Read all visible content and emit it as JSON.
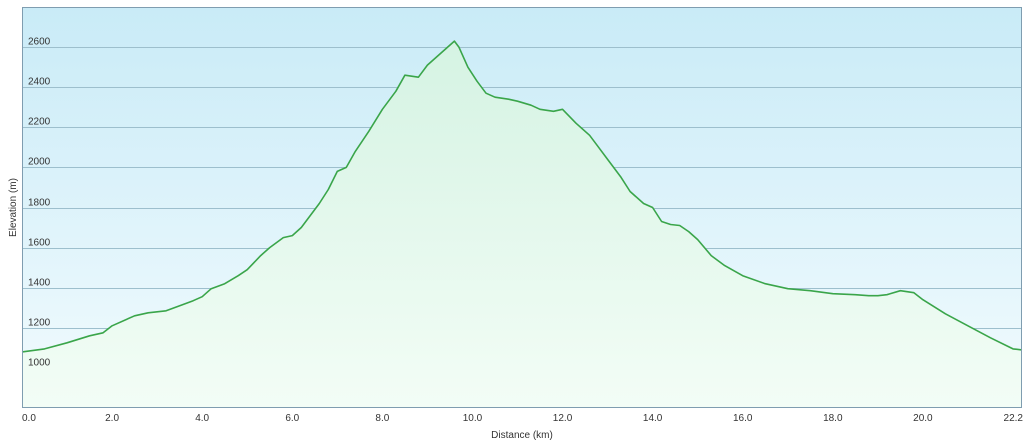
{
  "colors": {
    "background_top": "#c9ebf7",
    "background_bottom": "#f2fbfe",
    "fill_top": "#d5f3e3",
    "fill_bottom": "#f3fdf6",
    "line": "#3aa54a",
    "gridline": "#9dbfcd",
    "border": "#7f9db0"
  },
  "chart_data": {
    "type": "area",
    "xlabel": "Distance  (km)",
    "ylabel": "Elevation (m)",
    "xlim": [
      0,
      22.2
    ],
    "ylim": [
      800,
      2800
    ],
    "xticks": [
      {
        "value": 0,
        "label": "0.0"
      },
      {
        "value": 2,
        "label": "2.0"
      },
      {
        "value": 4,
        "label": "4.0"
      },
      {
        "value": 6,
        "label": "6.0"
      },
      {
        "value": 8,
        "label": "8.0"
      },
      {
        "value": 10,
        "label": "10.0"
      },
      {
        "value": 12,
        "label": "12.0"
      },
      {
        "value": 14,
        "label": "14.0"
      },
      {
        "value": 16,
        "label": "16.0"
      },
      {
        "value": 18,
        "label": "18.0"
      },
      {
        "value": 20,
        "label": "20.0"
      },
      {
        "value": 22.2,
        "label": "22.2"
      }
    ],
    "yticks": [
      {
        "value": 1000,
        "label": "1000"
      },
      {
        "value": 1200,
        "label": "1200"
      },
      {
        "value": 1400,
        "label": "1400"
      },
      {
        "value": 1600,
        "label": "1600"
      },
      {
        "value": 1800,
        "label": "1800"
      },
      {
        "value": 2000,
        "label": "2000"
      },
      {
        "value": 2200,
        "label": "2200"
      },
      {
        "value": 2400,
        "label": "2400"
      },
      {
        "value": 2600,
        "label": "2600"
      }
    ],
    "grid": true,
    "series": [
      {
        "x": [
          0,
          0.5,
          1.0,
          1.5,
          1.8,
          2.0,
          2.5,
          2.8,
          3.2,
          3.5,
          3.8,
          4.0,
          4.2,
          4.5,
          4.8,
          5.0,
          5.3,
          5.5,
          5.8,
          6.0,
          6.2,
          6.4,
          6.6,
          6.8,
          7.0,
          7.2,
          7.4,
          7.7,
          8.0,
          8.3,
          8.5,
          8.8,
          9.0,
          9.3,
          9.6,
          9.7,
          9.9,
          10.1,
          10.3,
          10.5,
          10.8,
          11.0,
          11.3,
          11.5,
          11.8,
          12.0,
          12.3,
          12.6,
          12.8,
          13.0,
          13.3,
          13.5,
          13.8,
          14.0,
          14.2,
          14.4,
          14.6,
          14.8,
          15.0,
          15.3,
          15.6,
          16.0,
          16.5,
          17.0,
          17.5,
          18.0,
          18.5,
          18.8,
          19.0,
          19.2,
          19.5,
          19.8,
          20.0,
          20.5,
          21.0,
          21.5,
          22.0,
          22.2
        ],
        "y": [
          1080,
          1095,
          1125,
          1160,
          1175,
          1210,
          1260,
          1275,
          1285,
          1310,
          1335,
          1355,
          1395,
          1420,
          1460,
          1490,
          1560,
          1600,
          1650,
          1660,
          1700,
          1760,
          1820,
          1890,
          1980,
          2000,
          2080,
          2180,
          2290,
          2380,
          2460,
          2450,
          2510,
          2570,
          2630,
          2600,
          2500,
          2430,
          2370,
          2350,
          2340,
          2330,
          2310,
          2290,
          2280,
          2290,
          2220,
          2160,
          2100,
          2040,
          1950,
          1880,
          1820,
          1800,
          1730,
          1715,
          1710,
          1680,
          1640,
          1560,
          1510,
          1460,
          1420,
          1395,
          1385,
          1370,
          1365,
          1360,
          1360,
          1365,
          1385,
          1375,
          1340,
          1270,
          1210,
          1150,
          1095,
          1090
        ]
      }
    ]
  }
}
